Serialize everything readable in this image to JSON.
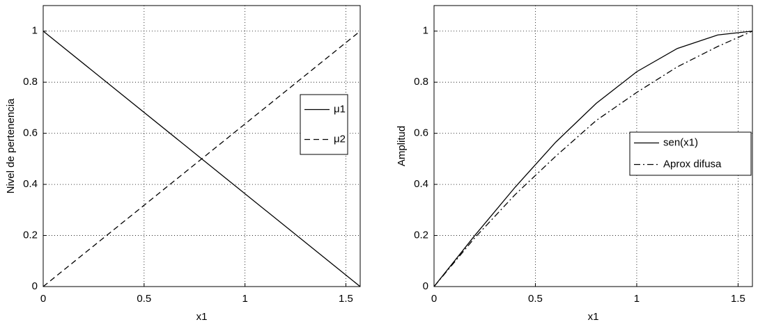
{
  "chart_data": [
    {
      "type": "line",
      "xlabel": "x1",
      "ylabel": "Nivel de pertenencia",
      "x": [
        0,
        1.5708
      ],
      "series": [
        {
          "name": "μ1",
          "color": "#000000",
          "style": "solid",
          "values": [
            1,
            0
          ]
        },
        {
          "name": "μ2",
          "color": "#000000",
          "style": "dashed",
          "values": [
            0,
            1
          ]
        }
      ],
      "xlim": [
        0,
        1.5708
      ],
      "ylim": [
        0,
        1.1
      ],
      "xticks": [
        0,
        0.5,
        1,
        1.5
      ],
      "yticks": [
        0,
        0.2,
        0.4,
        0.6,
        0.8,
        1
      ],
      "grid": true,
      "legend": "east"
    },
    {
      "type": "line",
      "xlabel": "x1",
      "ylabel": "Amplitud",
      "x": [
        0,
        0.2,
        0.4,
        0.6,
        0.8,
        1.0,
        1.2,
        1.4,
        1.5708
      ],
      "series": [
        {
          "name": "sen(x1)",
          "color": "#000000",
          "style": "solid",
          "values": [
            0,
            0.199,
            0.389,
            0.565,
            0.717,
            0.841,
            0.932,
            0.985,
            1
          ]
        },
        {
          "name": "Aprox difusa",
          "color": "#000000",
          "style": "dashdot",
          "values": [
            0,
            0.19,
            0.36,
            0.51,
            0.65,
            0.76,
            0.86,
            0.94,
            1
          ]
        }
      ],
      "xlim": [
        0,
        1.5708
      ],
      "ylim": [
        0,
        1.1
      ],
      "xticks": [
        0,
        0.5,
        1,
        1.5
      ],
      "yticks": [
        0,
        0.2,
        0.4,
        0.6,
        0.8,
        1
      ],
      "grid": true,
      "legend": "east"
    }
  ]
}
